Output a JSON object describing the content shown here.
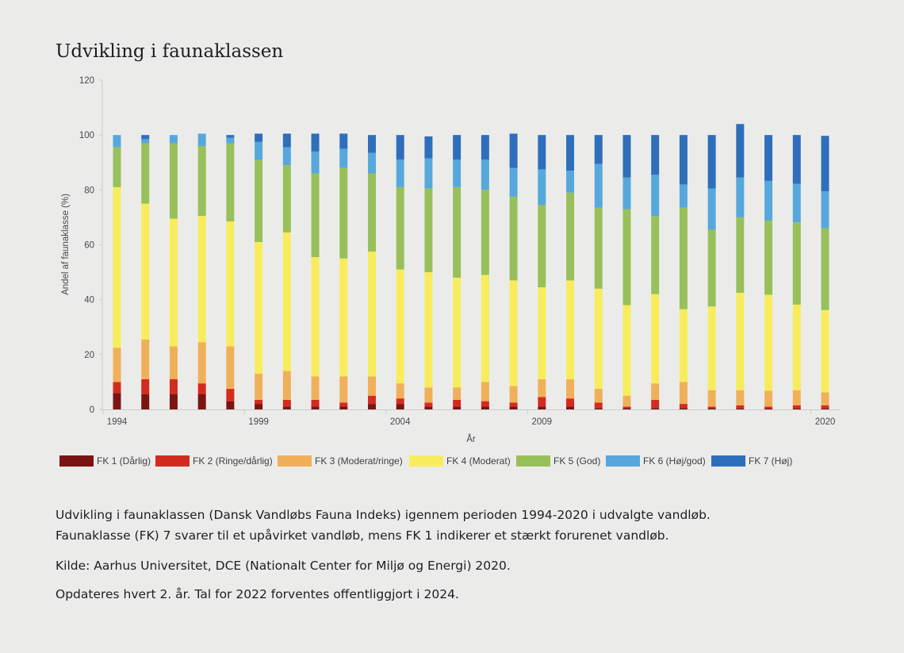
{
  "page": {
    "title": "Udvikling i faunaklassen",
    "caption_line1": "Udvikling i faunaklassen (Dansk Vandløbs Fauna Indeks) igennem perioden 1994-2020 i udvalgte vandløb.",
    "caption_line2": "Faunaklasse (FK) 7 svarer til et upåvirket vandløb, mens FK 1 indikerer et stærkt forurenet vandløb.",
    "source": "Kilde:  Aarhus Universitet, DCE (Nationalt Center for Miljø og Energi) 2020.",
    "update_note": "Opdateres hvert 2. år. Tal for 2022 forventes offentliggjort i 2024."
  },
  "chart_data": {
    "type": "bar",
    "stacked": true,
    "title": "Udvikling i faunaklassen",
    "xlabel": "År",
    "ylabel": "Andel af faunaklasse (%)",
    "ylim": [
      0,
      120
    ],
    "yticks": [
      0,
      20,
      40,
      60,
      80,
      100,
      120
    ],
    "xtick_labels": [
      "1994",
      "1999",
      "2004",
      "2009",
      "2020"
    ],
    "grid": false,
    "legend_position": "bottom",
    "categories": [
      "1994",
      "1995",
      "1996",
      "1997",
      "1998",
      "1999",
      "2000",
      "2001",
      "2002",
      "2003",
      "2004",
      "2005",
      "2006",
      "2007",
      "2008",
      "2009",
      "2010",
      "2011",
      "2012",
      "2013",
      "2014",
      "2015",
      "2016",
      "2017",
      "2018",
      "2020"
    ],
    "series": [
      {
        "name": "FK 1 (Dårlig)",
        "color": "#7a1513",
        "values": [
          6,
          5.5,
          5.5,
          5.5,
          3,
          2,
          1,
          1,
          1,
          2,
          2,
          1,
          1,
          1,
          1,
          1,
          1,
          0.5,
          0.5,
          0.5,
          0.5,
          0.5,
          0.3,
          0.3,
          0.3,
          0.3
        ]
      },
      {
        "name": "FK 2 (Ringe/dårlig)",
        "color": "#d42b20",
        "values": [
          4,
          5.5,
          5.5,
          4,
          4.5,
          1.5,
          2.5,
          2.5,
          1.5,
          3,
          2,
          1.5,
          2.5,
          2,
          1.5,
          3.5,
          3,
          2,
          0.5,
          3,
          1.5,
          0.5,
          1.2,
          0.7,
          1.2,
          1.2
        ]
      },
      {
        "name": "FK 3 (Moderat/ringe)",
        "color": "#f0b05a",
        "values": [
          12.5,
          14.5,
          12,
          15,
          15.5,
          9.5,
          10.5,
          8.5,
          9.5,
          7,
          5.5,
          5.5,
          4.5,
          7,
          6,
          6.5,
          7,
          5,
          4,
          6,
          8,
          6,
          5.5,
          5.8,
          5.5,
          4.7
        ]
      },
      {
        "name": "FK 4 (Moderat)",
        "color": "#f8ec5c",
        "values": [
          58.5,
          49.5,
          46.5,
          46,
          45.5,
          48,
          50.5,
          43.5,
          43,
          45.5,
          41.5,
          42,
          40,
          39,
          38.5,
          33.5,
          36,
          36.5,
          33,
          32.5,
          26.5,
          30.5,
          35.5,
          35,
          31.2,
          30
        ]
      },
      {
        "name": "FK 5 (God)",
        "color": "#98c05a",
        "values": [
          14.5,
          22,
          27.5,
          25.5,
          28.5,
          30,
          24.5,
          30.5,
          33,
          28.5,
          30,
          30.5,
          33,
          31,
          30.5,
          30,
          32,
          29.5,
          35,
          28.5,
          37,
          28,
          27.5,
          27,
          30,
          29.8
        ]
      },
      {
        "name": "FK 6 (Høj/god)",
        "color": "#56a8dc",
        "values": [
          4.5,
          1.5,
          3,
          4.5,
          2,
          6.5,
          6.5,
          8,
          7,
          7.5,
          10,
          11,
          10,
          11,
          10.5,
          13,
          8,
          16,
          11.5,
          15,
          8.5,
          15,
          14.5,
          14.5,
          14,
          13.5
        ]
      },
      {
        "name": "FK 7 (Høj)",
        "color": "#2f6ebb",
        "values": [
          0,
          1.5,
          0,
          0,
          1,
          3,
          5,
          6.5,
          5.5,
          6.5,
          9,
          8,
          9,
          9,
          12.5,
          12.5,
          13,
          10.5,
          15.5,
          14.5,
          18,
          19.5,
          19.5,
          16.7,
          17.8,
          20.2
        ]
      }
    ]
  }
}
